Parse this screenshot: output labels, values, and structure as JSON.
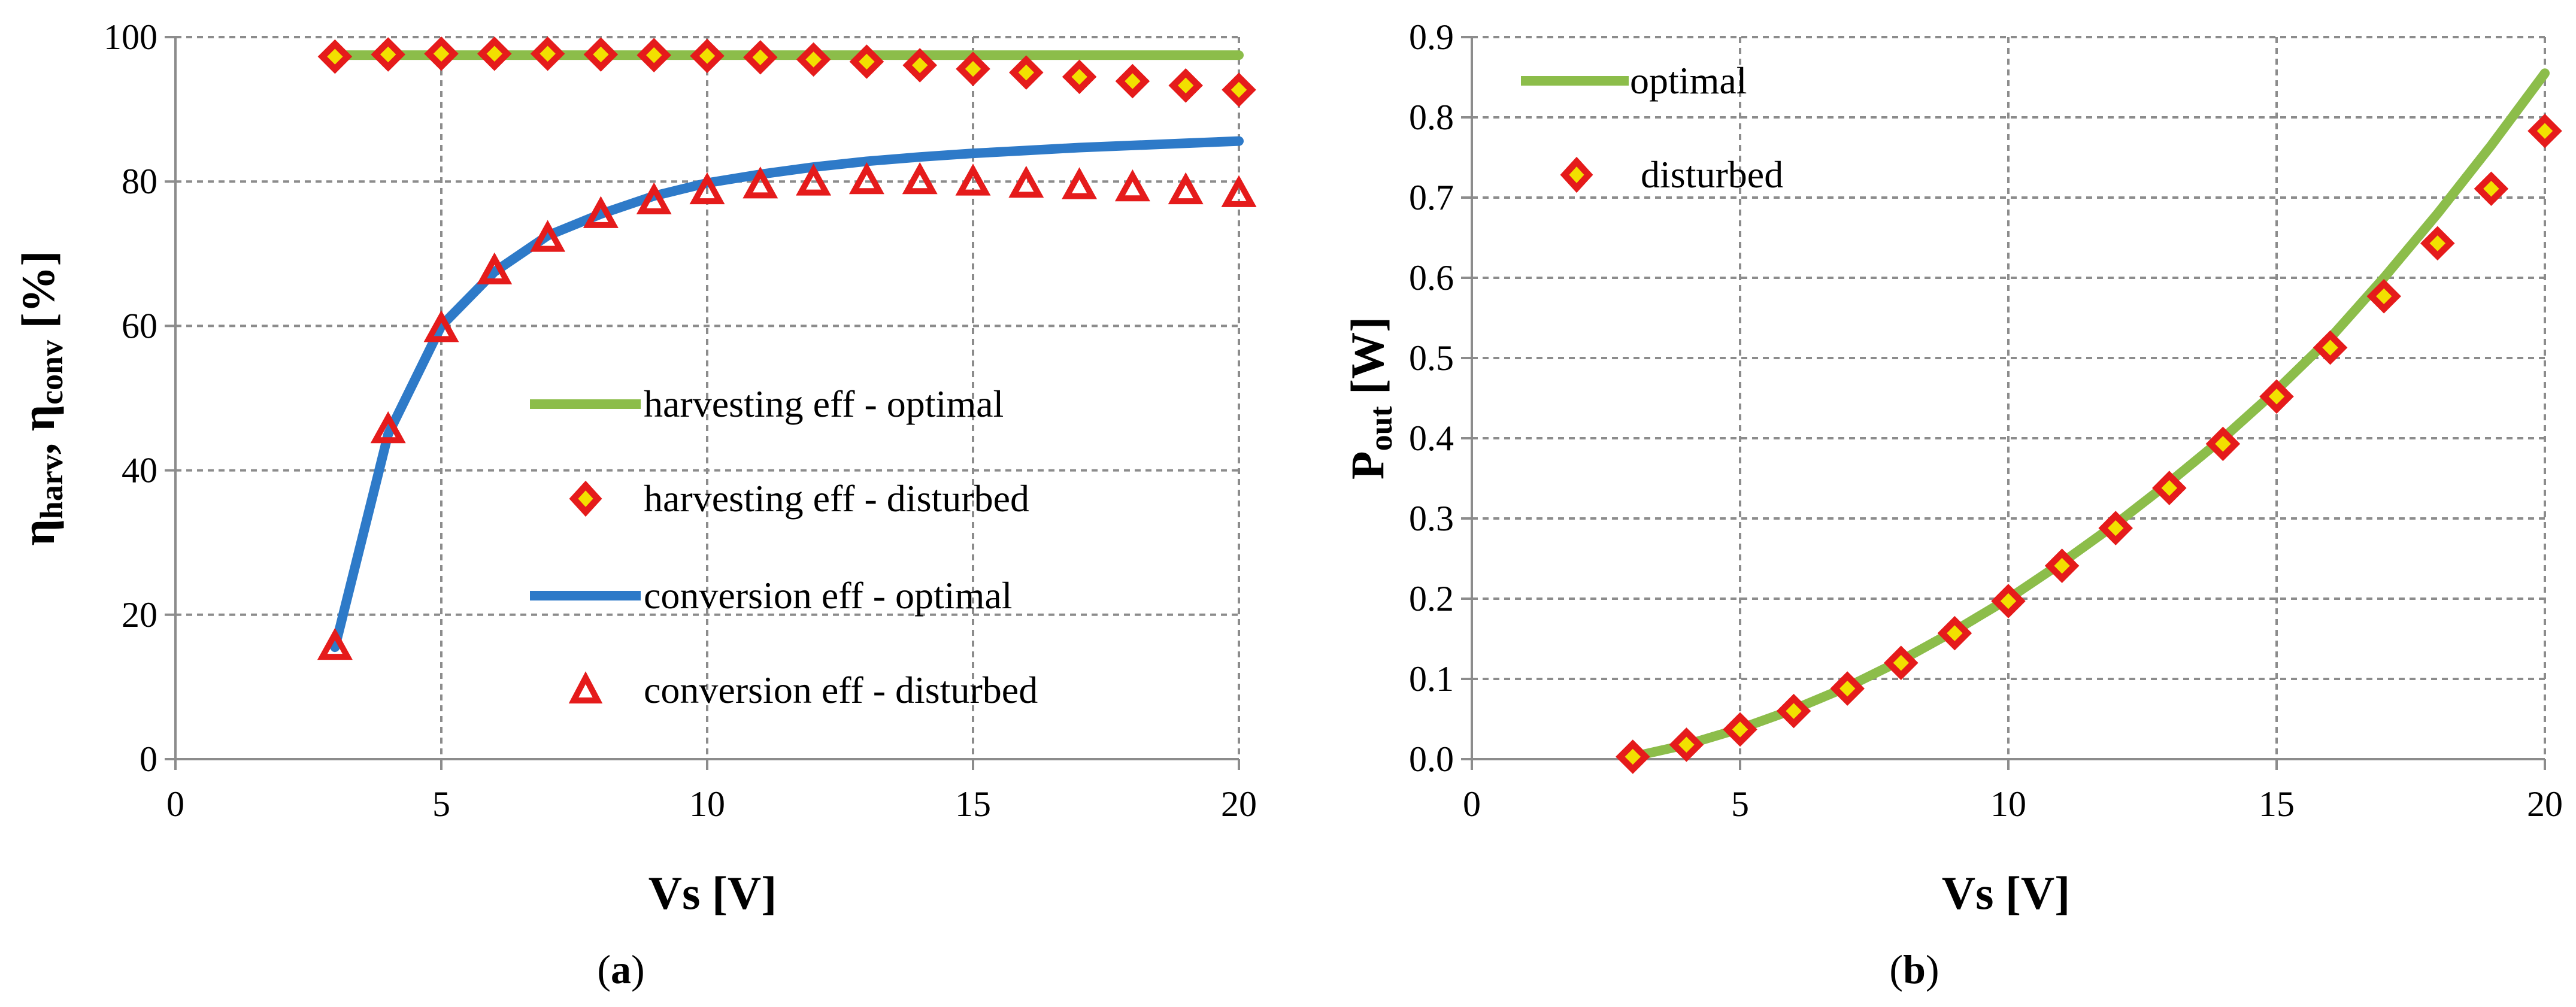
{
  "chart_data": [
    {
      "type": "line",
      "panel_label": "a",
      "xlabel": "Vs [V]",
      "ylabel": {
        "main": "η",
        "sub1": "harv",
        "sep": ", η",
        "sub2": "conv",
        "unit": " [%]"
      },
      "xlim": [
        0,
        20
      ],
      "ylim": [
        0,
        100
      ],
      "xticks": [
        0,
        5,
        10,
        15,
        20
      ],
      "yticks": [
        0,
        20,
        40,
        60,
        80,
        100
      ],
      "grid": true,
      "legend_position": "center-right",
      "colors": {
        "harv_optimal": "#8cbd4a",
        "conv_optimal": "#2e7ac8",
        "disturbed": "#e51b1b"
      },
      "series": [
        {
          "name": "harvesting eff - optimal",
          "style": "line",
          "color": "#8cbd4a",
          "x": [
            3,
            20
          ],
          "y": [
            97.5,
            97.5
          ]
        },
        {
          "name": "harvesting eff - disturbed",
          "style": "diamond",
          "color": "#e51b1b",
          "x": [
            3,
            4,
            5,
            6,
            7,
            8,
            9,
            10,
            11,
            12,
            13,
            14,
            15,
            16,
            17,
            18,
            19,
            20
          ],
          "y": [
            97.3,
            97.6,
            97.7,
            97.7,
            97.7,
            97.6,
            97.5,
            97.4,
            97.2,
            96.9,
            96.6,
            96.1,
            95.6,
            95.1,
            94.5,
            93.9,
            93.3,
            92.7
          ]
        },
        {
          "name": "conversion eff - optimal",
          "style": "line",
          "color": "#2e7ac8",
          "x": [
            3,
            4,
            5,
            6,
            7,
            8,
            9,
            10,
            11,
            12,
            13,
            14,
            15,
            16,
            17,
            18,
            19,
            20
          ],
          "y": [
            15.5,
            45,
            60,
            67.5,
            72.5,
            75.5,
            78,
            79.8,
            81,
            82,
            82.8,
            83.4,
            83.9,
            84.3,
            84.7,
            85,
            85.3,
            85.6
          ]
        },
        {
          "name": "conversion eff - disturbed",
          "style": "triangle",
          "color": "#e51b1b",
          "x": [
            3,
            4,
            5,
            6,
            7,
            8,
            9,
            10,
            11,
            12,
            13,
            14,
            15,
            16,
            17,
            18,
            19,
            20
          ],
          "y": [
            15.5,
            45.5,
            59.5,
            67.5,
            72,
            75.3,
            77.2,
            78.6,
            79.4,
            79.8,
            80,
            80,
            79.8,
            79.5,
            79.3,
            79,
            78.6,
            78.2
          ]
        }
      ]
    },
    {
      "type": "line",
      "panel_label": "b",
      "xlabel": "Vs [V]",
      "ylabel": {
        "main": "P",
        "sub": "out",
        "unit": " [W]"
      },
      "xlim": [
        0,
        20
      ],
      "ylim": [
        0,
        0.9
      ],
      "xticks": [
        0,
        5,
        10,
        15,
        20
      ],
      "yticks": [
        "0.0",
        "0.1",
        "0.2",
        "0.3",
        "0.4",
        "0.5",
        "0.6",
        "0.7",
        "0.8",
        "0.9"
      ],
      "grid": true,
      "legend_position": "top-left",
      "colors": {
        "optimal": "#8cbd4a",
        "disturbed": "#e51b1b"
      },
      "series": [
        {
          "name": "optimal",
          "style": "line",
          "color": "#8cbd4a",
          "x": [
            3,
            4,
            5,
            6,
            7,
            8,
            9,
            10,
            11,
            12,
            13,
            14,
            15,
            16,
            17,
            18,
            19,
            20
          ],
          "y": [
            0.003,
            0.018,
            0.038,
            0.062,
            0.09,
            0.123,
            0.16,
            0.2,
            0.245,
            0.293,
            0.345,
            0.4,
            0.46,
            0.525,
            0.6,
            0.68,
            0.765,
            0.855
          ]
        },
        {
          "name": "disturbed",
          "style": "diamond",
          "color": "#e51b1b",
          "x": [
            3,
            4,
            5,
            6,
            7,
            8,
            9,
            10,
            11,
            12,
            13,
            14,
            15,
            16,
            17,
            18,
            19,
            20
          ],
          "y": [
            0.003,
            0.018,
            0.037,
            0.06,
            0.088,
            0.12,
            0.157,
            0.197,
            0.241,
            0.288,
            0.338,
            0.393,
            0.452,
            0.513,
            0.577,
            0.643,
            0.711,
            0.783
          ]
        }
      ]
    }
  ]
}
